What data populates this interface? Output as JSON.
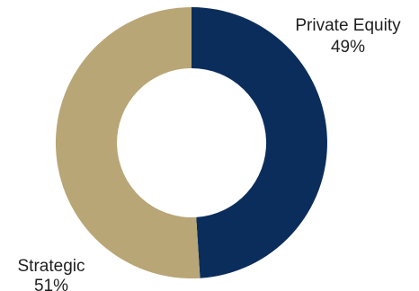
{
  "chart_data": {
    "type": "pie",
    "variant": "donut",
    "slices": [
      {
        "label": "Private Equity",
        "value": 49,
        "value_text": "49%",
        "color": "#0b2d5c"
      },
      {
        "label": "Strategic",
        "value": 51,
        "value_text": "51%",
        "color": "#b9a676"
      }
    ],
    "legend": "none",
    "start_angle": "12 o'clock",
    "direction": "clockwise"
  }
}
